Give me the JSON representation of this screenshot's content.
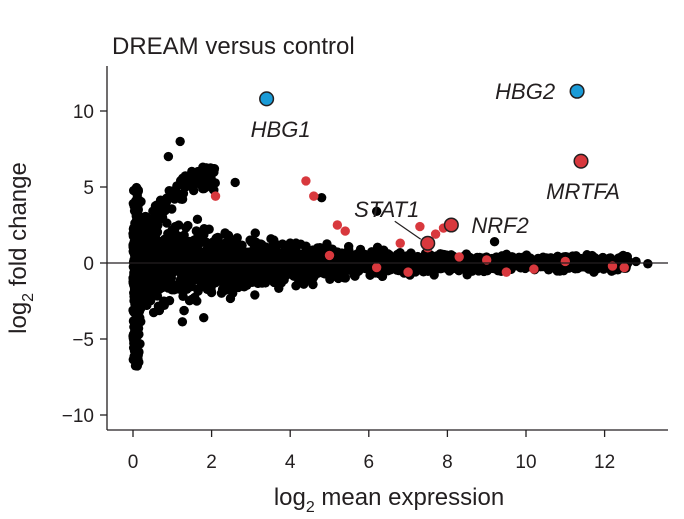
{
  "chart_data": {
    "type": "scatter",
    "title": "DREAM versus control",
    "xlabel": {
      "base": "log",
      "sub": "2",
      "rest": " mean expression"
    },
    "ylabel": {
      "base": "log",
      "sub": "2",
      "rest": " fold change"
    },
    "xlim": [
      -0.6,
      13.5
    ],
    "ylim": [
      -11.2,
      12.9
    ],
    "x_ticks": [
      0,
      2,
      4,
      6,
      8,
      10,
      12
    ],
    "x_tick_labels": [
      "0",
      "2",
      "4",
      "6",
      "8",
      "10",
      "12"
    ],
    "y_ticks": [
      10,
      5,
      0,
      -5,
      -10
    ],
    "y_tick_labels": [
      "10",
      "5",
      "0",
      "−5",
      "−10"
    ],
    "zero_line": true,
    "grid": false,
    "colors": {
      "background_genes": "#000000",
      "significant_genes": "#d8383d",
      "highlighted_up": "#1a9bd7",
      "highlighted_other": "#d8383d",
      "axis": "#231f20"
    },
    "series": [
      {
        "color": "#d8383d",
        "points": [
          [
            2.1,
            4.4
          ],
          [
            4.4,
            5.4
          ],
          [
            4.6,
            4.4
          ],
          [
            5.2,
            2.5
          ],
          [
            5.4,
            2.1
          ],
          [
            6.8,
            1.3
          ],
          [
            7.3,
            2.4
          ],
          [
            7.5,
            1.0
          ],
          [
            7.7,
            1.9
          ],
          [
            7.9,
            2.3
          ],
          [
            7.0,
            -0.6
          ],
          [
            8.3,
            0.4
          ],
          [
            9.0,
            0.2
          ],
          [
            9.5,
            -0.6
          ],
          [
            10.2,
            -0.4
          ],
          [
            11.0,
            0.1
          ],
          [
            12.2,
            -0.2
          ],
          [
            12.5,
            -0.3
          ],
          [
            6.2,
            -0.3
          ],
          [
            5.0,
            0.5
          ]
        ]
      }
    ],
    "highlighted_genes": [
      {
        "label": "HBG1",
        "x": 3.4,
        "y": 10.8,
        "color": "#1a9bd7"
      },
      {
        "label": "HBG2",
        "x": 11.3,
        "y": 11.3,
        "color": "#1a9bd7"
      },
      {
        "label": "MRTFA",
        "x": 11.4,
        "y": 6.7,
        "color": "#d8383d"
      },
      {
        "label": "NRF2",
        "x": 8.1,
        "y": 2.5,
        "color": "#d8383d"
      },
      {
        "label": "STAT1",
        "x": 7.5,
        "y": 1.3,
        "color": "#d8383d"
      }
    ]
  }
}
